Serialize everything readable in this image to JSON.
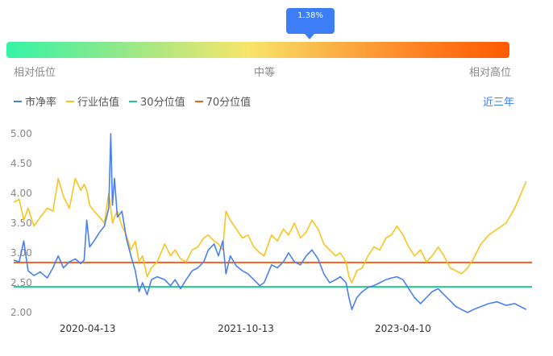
{
  "gauge": {
    "tooltip": "1.38%",
    "low_label": "相对低位",
    "mid_label": "中等",
    "high_label": "相对高位"
  },
  "range_button": "近三年",
  "colors": {
    "pb": "#4a7ff0",
    "industry": "#f7c520",
    "p30": "#22c98a",
    "p70": "#f0601e",
    "accent": "#3d7df5"
  },
  "chart_data": {
    "type": "line",
    "y_ticks": [
      "5.00",
      "4.50",
      "4.00",
      "3.50",
      "3.00",
      "2.50",
      "2.00"
    ],
    "ylim": [
      2.0,
      5.0
    ],
    "x_ticks": [
      "2020-04-13",
      "2021-10-13",
      "2023-04-10"
    ],
    "xlim": [
      "2019-08-01",
      "2024-06-30"
    ],
    "grid": false,
    "legend_position": "top-left",
    "series": [
      {
        "name": "市净率",
        "points": [
          [
            "2019-08-01",
            2.88
          ],
          [
            "2019-08-20",
            2.85
          ],
          [
            "2019-09-05",
            3.2
          ],
          [
            "2019-09-20",
            2.7
          ],
          [
            "2019-10-10",
            2.62
          ],
          [
            "2019-11-01",
            2.68
          ],
          [
            "2019-11-25",
            2.58
          ],
          [
            "2019-12-15",
            2.75
          ],
          [
            "2020-01-02",
            2.95
          ],
          [
            "2020-01-20",
            2.75
          ],
          [
            "2020-02-10",
            2.85
          ],
          [
            "2020-03-01",
            2.9
          ],
          [
            "2020-03-20",
            2.82
          ],
          [
            "2020-04-01",
            2.88
          ],
          [
            "2020-04-10",
            3.55
          ],
          [
            "2020-04-20",
            3.1
          ],
          [
            "2020-05-05",
            3.2
          ],
          [
            "2020-05-25",
            3.35
          ],
          [
            "2020-06-10",
            3.45
          ],
          [
            "2020-06-25",
            3.75
          ],
          [
            "2020-07-02",
            5.0
          ],
          [
            "2020-07-08",
            3.8
          ],
          [
            "2020-07-15",
            4.25
          ],
          [
            "2020-07-25",
            3.6
          ],
          [
            "2020-08-10",
            3.7
          ],
          [
            "2020-08-25",
            3.25
          ],
          [
            "2020-09-10",
            2.95
          ],
          [
            "2020-09-25",
            2.7
          ],
          [
            "2020-10-08",
            2.35
          ],
          [
            "2020-10-20",
            2.5
          ],
          [
            "2020-11-05",
            2.3
          ],
          [
            "2020-11-20",
            2.55
          ],
          [
            "2020-12-10",
            2.6
          ],
          [
            "2021-01-05",
            2.55
          ],
          [
            "2021-01-25",
            2.45
          ],
          [
            "2021-02-10",
            2.55
          ],
          [
            "2021-03-01",
            2.4
          ],
          [
            "2021-03-20",
            2.55
          ],
          [
            "2021-04-10",
            2.7
          ],
          [
            "2021-04-30",
            2.75
          ],
          [
            "2021-05-20",
            2.85
          ],
          [
            "2021-06-05",
            3.05
          ],
          [
            "2021-06-25",
            3.15
          ],
          [
            "2021-07-10",
            2.95
          ],
          [
            "2021-07-25",
            3.2
          ],
          [
            "2021-08-05",
            2.65
          ],
          [
            "2021-08-20",
            2.95
          ],
          [
            "2021-09-10",
            2.78
          ],
          [
            "2021-10-01",
            2.7
          ],
          [
            "2021-10-20",
            2.65
          ],
          [
            "2021-11-10",
            2.55
          ],
          [
            "2021-11-30",
            2.45
          ],
          [
            "2021-12-15",
            2.5
          ],
          [
            "2022-01-10",
            2.8
          ],
          [
            "2022-01-30",
            2.75
          ],
          [
            "2022-02-20",
            2.85
          ],
          [
            "2022-03-10",
            3.0
          ],
          [
            "2022-03-30",
            2.85
          ],
          [
            "2022-04-20",
            2.8
          ],
          [
            "2022-05-10",
            2.95
          ],
          [
            "2022-05-30",
            3.05
          ],
          [
            "2022-06-20",
            2.9
          ],
          [
            "2022-07-10",
            2.65
          ],
          [
            "2022-07-30",
            2.5
          ],
          [
            "2022-08-20",
            2.55
          ],
          [
            "2022-09-05",
            2.6
          ],
          [
            "2022-09-25",
            2.5
          ],
          [
            "2022-10-05",
            2.25
          ],
          [
            "2022-10-15",
            2.05
          ],
          [
            "2022-11-01",
            2.25
          ],
          [
            "2022-11-20",
            2.35
          ],
          [
            "2022-12-10",
            2.42
          ],
          [
            "2022-12-30",
            2.45
          ],
          [
            "2023-01-20",
            2.5
          ],
          [
            "2023-02-10",
            2.55
          ],
          [
            "2023-03-01",
            2.58
          ],
          [
            "2023-03-20",
            2.6
          ],
          [
            "2023-04-10",
            2.55
          ],
          [
            "2023-04-30",
            2.4
          ],
          [
            "2023-05-20",
            2.25
          ],
          [
            "2023-06-10",
            2.15
          ],
          [
            "2023-06-30",
            2.25
          ],
          [
            "2023-07-20",
            2.35
          ],
          [
            "2023-08-10",
            2.4
          ],
          [
            "2023-08-30",
            2.3
          ],
          [
            "2023-09-20",
            2.2
          ],
          [
            "2023-10-10",
            2.1
          ],
          [
            "2023-10-30",
            2.05
          ],
          [
            "2023-11-20",
            2.0
          ],
          [
            "2023-12-10",
            2.05
          ],
          [
            "2024-01-05",
            2.1
          ],
          [
            "2024-02-01",
            2.15
          ],
          [
            "2024-03-01",
            2.18
          ],
          [
            "2024-04-01",
            2.12
          ],
          [
            "2024-05-01",
            2.15
          ],
          [
            "2024-06-10",
            2.05
          ]
        ]
      },
      {
        "name": "行业估值",
        "points": [
          [
            "2019-08-01",
            3.85
          ],
          [
            "2019-08-20",
            3.9
          ],
          [
            "2019-09-05",
            3.55
          ],
          [
            "2019-09-20",
            3.75
          ],
          [
            "2019-10-10",
            3.45
          ],
          [
            "2019-11-01",
            3.6
          ],
          [
            "2019-11-25",
            3.75
          ],
          [
            "2019-12-15",
            3.7
          ],
          [
            "2020-01-02",
            4.25
          ],
          [
            "2020-01-20",
            3.95
          ],
          [
            "2020-02-10",
            3.75
          ],
          [
            "2020-03-01",
            4.25
          ],
          [
            "2020-03-20",
            4.05
          ],
          [
            "2020-04-01",
            4.15
          ],
          [
            "2020-04-10",
            4.05
          ],
          [
            "2020-04-20",
            3.8
          ],
          [
            "2020-05-05",
            3.7
          ],
          [
            "2020-05-25",
            3.6
          ],
          [
            "2020-06-10",
            3.5
          ],
          [
            "2020-06-25",
            4.0
          ],
          [
            "2020-07-02",
            3.75
          ],
          [
            "2020-07-08",
            3.5
          ],
          [
            "2020-07-15",
            3.6
          ],
          [
            "2020-07-25",
            3.7
          ],
          [
            "2020-08-10",
            3.45
          ],
          [
            "2020-08-25",
            3.3
          ],
          [
            "2020-09-10",
            3.05
          ],
          [
            "2020-09-25",
            3.2
          ],
          [
            "2020-10-08",
            2.85
          ],
          [
            "2020-10-20",
            2.95
          ],
          [
            "2020-11-05",
            2.6
          ],
          [
            "2020-11-20",
            2.75
          ],
          [
            "2020-12-10",
            2.85
          ],
          [
            "2021-01-05",
            3.15
          ],
          [
            "2021-01-25",
            2.95
          ],
          [
            "2021-02-10",
            3.05
          ],
          [
            "2021-03-01",
            2.9
          ],
          [
            "2021-03-20",
            2.85
          ],
          [
            "2021-04-10",
            3.05
          ],
          [
            "2021-04-30",
            3.1
          ],
          [
            "2021-05-20",
            3.25
          ],
          [
            "2021-06-05",
            3.3
          ],
          [
            "2021-06-25",
            3.2
          ],
          [
            "2021-07-10",
            3.15
          ],
          [
            "2021-07-25",
            3.05
          ],
          [
            "2021-08-05",
            3.7
          ],
          [
            "2021-08-20",
            3.55
          ],
          [
            "2021-09-10",
            3.4
          ],
          [
            "2021-10-01",
            3.25
          ],
          [
            "2021-10-20",
            3.3
          ],
          [
            "2021-11-10",
            3.1
          ],
          [
            "2021-11-30",
            3.0
          ],
          [
            "2021-12-15",
            2.95
          ],
          [
            "2022-01-10",
            3.3
          ],
          [
            "2022-01-30",
            3.2
          ],
          [
            "2022-02-20",
            3.4
          ],
          [
            "2022-03-10",
            3.3
          ],
          [
            "2022-03-30",
            3.5
          ],
          [
            "2022-04-20",
            3.25
          ],
          [
            "2022-05-10",
            3.35
          ],
          [
            "2022-05-30",
            3.55
          ],
          [
            "2022-06-20",
            3.4
          ],
          [
            "2022-07-10",
            3.15
          ],
          [
            "2022-07-30",
            3.05
          ],
          [
            "2022-08-20",
            2.95
          ],
          [
            "2022-09-05",
            3.0
          ],
          [
            "2022-09-25",
            2.85
          ],
          [
            "2022-10-05",
            2.6
          ],
          [
            "2022-10-15",
            2.5
          ],
          [
            "2022-11-01",
            2.7
          ],
          [
            "2022-11-20",
            2.75
          ],
          [
            "2022-12-10",
            2.95
          ],
          [
            "2022-12-30",
            3.1
          ],
          [
            "2023-01-20",
            3.05
          ],
          [
            "2023-02-10",
            3.25
          ],
          [
            "2023-03-01",
            3.3
          ],
          [
            "2023-03-20",
            3.45
          ],
          [
            "2023-04-10",
            3.3
          ],
          [
            "2023-04-30",
            3.1
          ],
          [
            "2023-05-20",
            2.95
          ],
          [
            "2023-06-10",
            3.05
          ],
          [
            "2023-06-30",
            2.85
          ],
          [
            "2023-07-20",
            2.95
          ],
          [
            "2023-08-10",
            3.1
          ],
          [
            "2023-08-30",
            2.95
          ],
          [
            "2023-09-20",
            2.75
          ],
          [
            "2023-10-10",
            2.7
          ],
          [
            "2023-10-30",
            2.65
          ],
          [
            "2023-11-20",
            2.75
          ],
          [
            "2023-12-10",
            2.9
          ],
          [
            "2024-01-05",
            3.15
          ],
          [
            "2024-02-01",
            3.3
          ],
          [
            "2024-03-01",
            3.4
          ],
          [
            "2024-04-01",
            3.5
          ],
          [
            "2024-05-01",
            3.75
          ],
          [
            "2024-06-10",
            4.2
          ]
        ]
      },
      {
        "name": "30分位值",
        "value": 2.43
      },
      {
        "name": "70分位值",
        "value": 2.84
      }
    ]
  }
}
